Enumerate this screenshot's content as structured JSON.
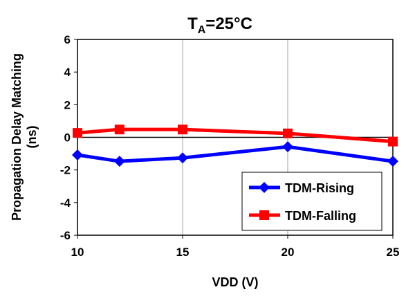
{
  "chart_data": {
    "type": "line",
    "title": "T",
    "title_subscript": "A",
    "title_suffix": "=25°C",
    "xlabel": "VDD (V)",
    "ylabel_line1": "Propagation Delay Matching",
    "ylabel_line2": "(ns)",
    "xlim": [
      10,
      25
    ],
    "ylim": [
      -6,
      6
    ],
    "x_ticks": [
      "10",
      "15",
      "20",
      "25"
    ],
    "y_ticks": [
      "6",
      "4",
      "2",
      "0",
      "-2",
      "-4",
      "-6"
    ],
    "grid": "vertical",
    "legend_position": "bottom-right",
    "x": [
      10,
      12,
      15,
      20,
      25
    ],
    "series": [
      {
        "name": "TDM-Rising",
        "color": "#0000ff",
        "marker": "diamond",
        "values": [
          -1.08,
          -1.47,
          -1.26,
          -0.58,
          -1.47
        ]
      },
      {
        "name": "TDM-Falling",
        "color": "#ff0000",
        "marker": "square",
        "values": [
          0.27,
          0.48,
          0.48,
          0.24,
          -0.26
        ]
      }
    ]
  }
}
